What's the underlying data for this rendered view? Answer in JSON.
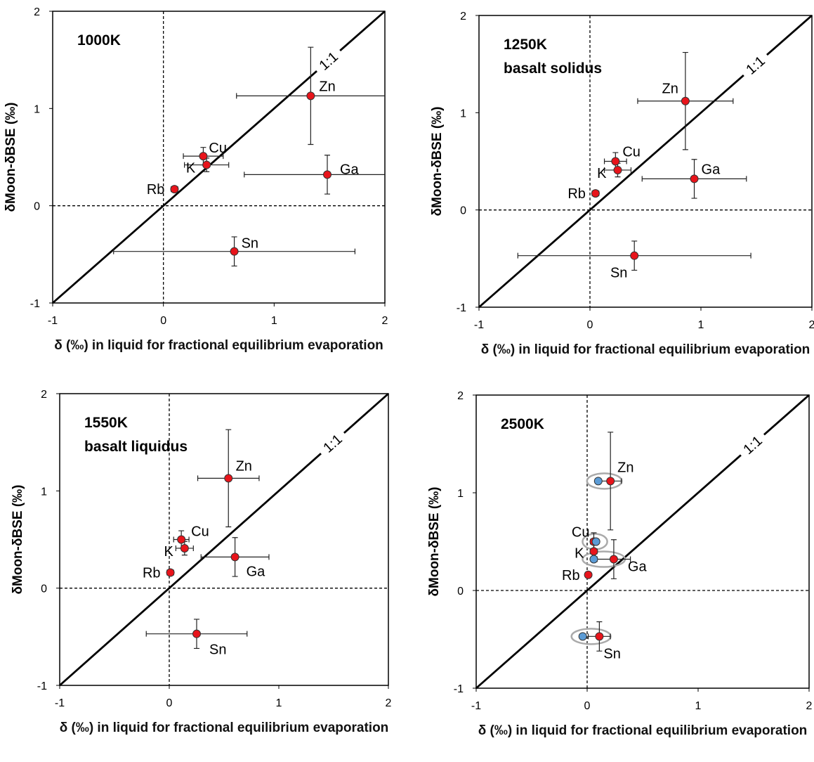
{
  "chart_data": [
    {
      "type": "scatter",
      "title": "1000K",
      "annotation": "1:1",
      "x_label": "δ (‰) in liquid for fractional equilibrium evaporation",
      "y_label": "δMoon-δBSE (‰)",
      "xlim": [
        -1,
        2
      ],
      "ylim": [
        -1,
        2
      ],
      "xticks": [
        -1,
        0,
        1,
        2
      ],
      "yticks": [
        -1,
        0,
        1,
        2
      ],
      "series": [
        {
          "color": "#e8141b",
          "labels": [
            "Zn",
            "Cu",
            "K",
            "Rb",
            "Ga",
            "Sn"
          ],
          "x": [
            1.33,
            0.36,
            0.39,
            0.1,
            1.48,
            0.64
          ],
          "values": [
            1.13,
            0.51,
            0.42,
            0.17,
            0.32,
            -0.47
          ],
          "xerr": [
            0.67,
            0.18,
            0.2,
            0.03,
            0.75,
            1.09
          ],
          "yerr": [
            0.5,
            0.09,
            0.07,
            0.03,
            0.2,
            0.15
          ]
        }
      ]
    },
    {
      "type": "scatter",
      "title": "1250K",
      "subtitle": "basalt solidus",
      "annotation": "1:1",
      "x_label": "δ (‰) in liquid for fractional equilibrium evaporation",
      "y_label": "δMoon-δBSE (‰)",
      "xlim": [
        -1,
        2
      ],
      "ylim": [
        -1,
        2
      ],
      "xticks": [
        -1,
        0,
        1,
        2
      ],
      "yticks": [
        -1,
        0,
        1,
        2
      ],
      "series": [
        {
          "color": "#e8141b",
          "labels": [
            "Zn",
            "Cu",
            "K",
            "Rb",
            "Ga",
            "Sn"
          ],
          "x": [
            0.86,
            0.23,
            0.25,
            0.05,
            0.94,
            0.4
          ],
          "values": [
            1.12,
            0.5,
            0.41,
            0.17,
            0.32,
            -0.47
          ],
          "xerr": [
            0.43,
            0.1,
            0.12,
            0.03,
            0.47,
            1.05
          ],
          "yerr": [
            0.5,
            0.09,
            0.07,
            0.03,
            0.2,
            0.15
          ]
        }
      ]
    },
    {
      "type": "scatter",
      "title": "1550K",
      "subtitle": "basalt liquidus",
      "annotation": "1:1",
      "x_label": "δ (‰) in liquid for fractional equilibrium evaporation",
      "y_label": "δMoon-δBSE (‰)",
      "xlim": [
        -1,
        2
      ],
      "ylim": [
        -1,
        2
      ],
      "xticks": [
        -1,
        0,
        1,
        2
      ],
      "yticks": [
        -1,
        0,
        1,
        2
      ],
      "series": [
        {
          "color": "#e8141b",
          "labels": [
            "Zn",
            "Cu",
            "K",
            "Rb",
            "Ga",
            "Sn"
          ],
          "x": [
            0.54,
            0.11,
            0.14,
            0.01,
            0.6,
            0.25
          ],
          "values": [
            1.13,
            0.5,
            0.41,
            0.16,
            0.32,
            -0.47
          ],
          "xerr": [
            0.28,
            0.07,
            0.08,
            0.03,
            0.31,
            0.46
          ],
          "yerr": [
            0.5,
            0.09,
            0.07,
            0.03,
            0.2,
            0.15
          ]
        }
      ]
    },
    {
      "type": "scatter",
      "title": "2500K",
      "annotation": "1:1",
      "x_label": "δ (‰) in liquid for fractional equilibrium evaporation",
      "y_label": "δMoon-δBSE (‰)",
      "xlim": [
        -1,
        2
      ],
      "ylim": [
        -1,
        2
      ],
      "xticks": [
        -1,
        0,
        1,
        2
      ],
      "yticks": [
        -1,
        0,
        1,
        2
      ],
      "series": [
        {
          "color": "#e8141b",
          "labels": [
            "Zn",
            "Cu",
            "K",
            "Rb",
            "Ga",
            "Sn"
          ],
          "x": [
            0.21,
            0.06,
            0.06,
            0.01,
            0.24,
            0.11
          ],
          "values": [
            1.12,
            0.5,
            0.4,
            0.16,
            0.32,
            -0.47
          ],
          "xerr": [
            0.1,
            0.03,
            0.03,
            0.02,
            0.15,
            0.1
          ],
          "yerr": [
            0.5,
            0.09,
            0.07,
            0.03,
            0.2,
            0.15
          ]
        },
        {
          "color": "#5b9bd5",
          "x": [
            0.1,
            0.08,
            0.06,
            -0.04
          ],
          "values": [
            1.12,
            0.5,
            0.32,
            -0.47
          ]
        }
      ]
    }
  ]
}
